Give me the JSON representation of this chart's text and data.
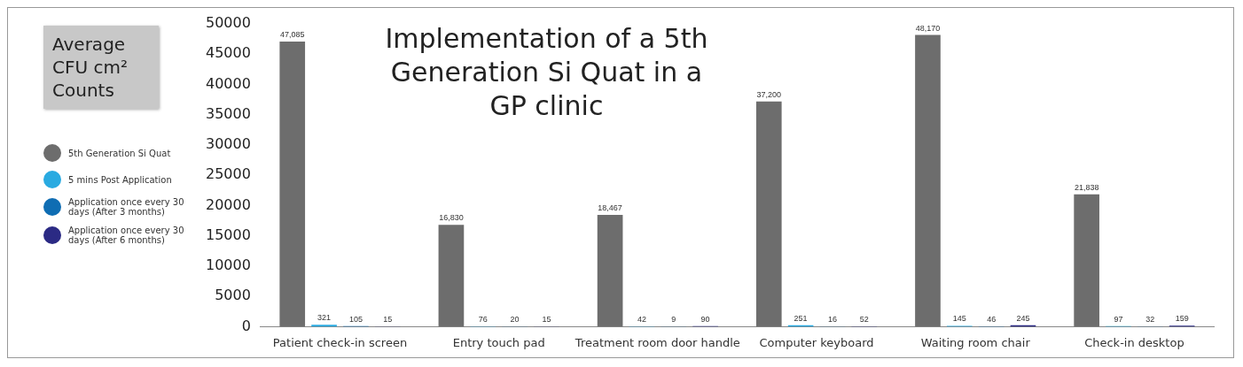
{
  "chart_data": {
    "type": "bar",
    "title": "Implementation of a 5th Generation Si Quat in a GP clinic",
    "ylabel": "Average CFU cm² Counts",
    "categories": [
      "Patient check-in screen",
      "Entry touch pad",
      "Treatment room door handle",
      "Computer keyboard",
      "Waiting room chair",
      "Check-in desktop"
    ],
    "series": [
      {
        "name": "5th Generation Si Quat",
        "color": "#6d6d6d",
        "values": [
          47085,
          16830,
          18467,
          37200,
          48170,
          21838
        ],
        "value_labels": [
          "47,085",
          "16,830",
          "18,467",
          "37,200",
          "48,170",
          "21,838"
        ]
      },
      {
        "name": "5 mins Post Application",
        "color": "#29aae1",
        "values": [
          321,
          76,
          42,
          251,
          145,
          97
        ],
        "value_labels": [
          "321",
          "76",
          "42",
          "251",
          "145",
          "97"
        ]
      },
      {
        "name": "Application once every 30 days (After 3 months)",
        "color": "#0f6db3",
        "values": [
          105,
          20,
          9,
          16,
          46,
          32
        ],
        "value_labels": [
          "105",
          "20",
          "9",
          "16",
          "46",
          "32"
        ]
      },
      {
        "name": "Application once every 30 days (After 6 months)",
        "color": "#2b2a84",
        "values": [
          15,
          15,
          90,
          52,
          245,
          159
        ],
        "value_labels": [
          "15",
          "15",
          "90",
          "52",
          "245",
          "159"
        ]
      }
    ],
    "ylim": [
      0,
      50000
    ],
    "yticks": [
      0,
      5000,
      10000,
      15000,
      20000,
      25000,
      30000,
      35000,
      40000,
      45000,
      50000
    ],
    "grid": false,
    "legend": "left"
  }
}
